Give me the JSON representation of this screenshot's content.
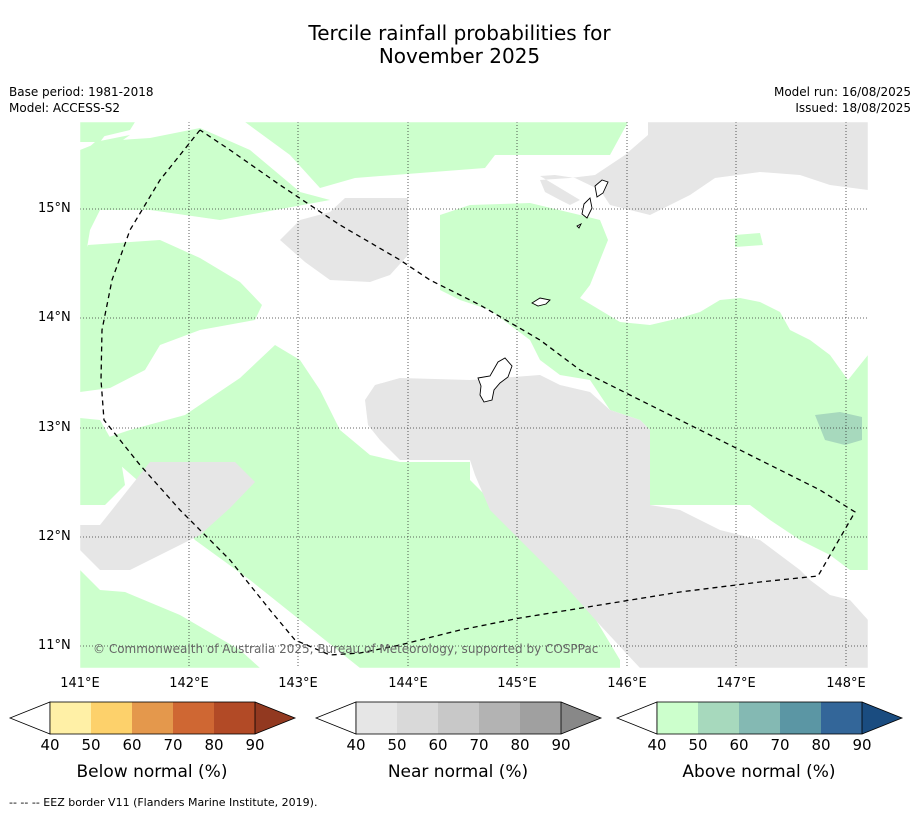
{
  "title_line1": "Tercile rainfall probabilities for",
  "title_line2": "November 2025",
  "base_period": "Base period: 1981-2018",
  "model": "Model: ACCESS-S2",
  "model_run": "Model run: 16/08/2025",
  "issued": "Issued: 18/08/2025",
  "lat_labels": [
    "15°N",
    "14°N",
    "13°N",
    "12°N",
    "11°N"
  ],
  "lon_labels": [
    "141°E",
    "142°E",
    "143°E",
    "144°E",
    "145°E",
    "146°E",
    "147°E",
    "148°E"
  ],
  "copyright": "© Commonwealth of Australia 2025, Bureau of Meteorology, supported by COSPPac",
  "legend": {
    "ticks": [
      "40",
      "50",
      "60",
      "70",
      "80",
      "90"
    ],
    "below": {
      "label": "Below normal (%)",
      "colors": [
        "#fff0a6",
        "#fdd16b",
        "#e4984c",
        "#cf6733",
        "#b24a26",
        "#923920"
      ]
    },
    "near": {
      "label": "Near normal (%)",
      "colors": [
        "#e6e6e6",
        "#d9d9d9",
        "#c8c8c8",
        "#b3b3b3",
        "#a0a0a0",
        "#888888"
      ]
    },
    "above": {
      "label": "Above normal (%)",
      "colors": [
        "#ccffcc",
        "#a7d9bd",
        "#84b9b3",
        "#5b96a4",
        "#336699",
        "#1a4c80"
      ]
    }
  },
  "footnote": "--  --  -- EEZ border V11 (Flanders Marine Institute, 2019)."
}
